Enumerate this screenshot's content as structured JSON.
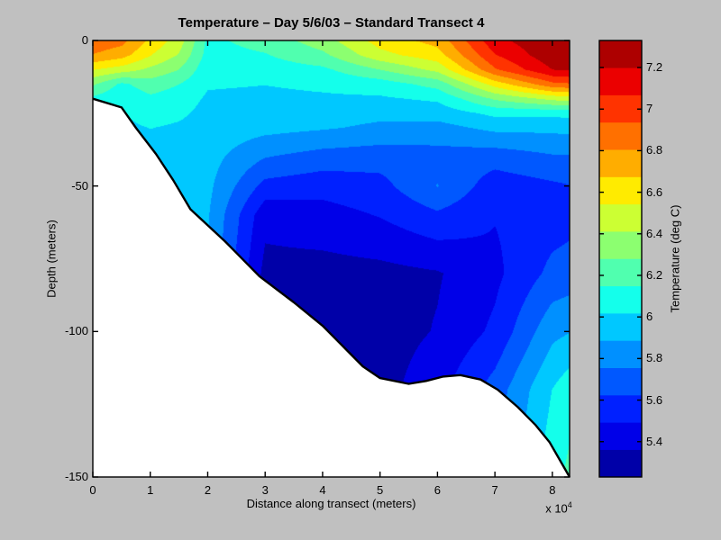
{
  "figure": {
    "title": "Temperature – Day 5/6/03 – Standard Transect 4",
    "background_color": "#C0C0C0"
  },
  "chart_data": {
    "type": "filled_contour",
    "title": "Temperature – Day 5/6/03 – Standard Transect 4",
    "xlabel": "Distance along transect (meters)",
    "ylabel": "Depth (meters)",
    "x_axis": {
      "min": 0,
      "max": 8.3,
      "tick_values": [
        0,
        1,
        2,
        3,
        4,
        5,
        6,
        7,
        8
      ],
      "tick_labels": [
        "0",
        "1",
        "2",
        "3",
        "4",
        "5",
        "6",
        "7",
        "8"
      ],
      "exponent_prefix": "x 10",
      "exponent_power": "4",
      "units": "meters (x 10^4)"
    },
    "y_axis": {
      "min": -150,
      "max": 0,
      "tick_values": [
        0,
        -50,
        -100,
        -150
      ],
      "tick_labels": [
        "0",
        "-50",
        "-100",
        "-150"
      ]
    },
    "colorbar": {
      "label": "Temperature (deg C)",
      "vmin": 5.23,
      "vmax": 7.33,
      "n_bands": 16,
      "tick_values": [
        5.4,
        5.6,
        5.8,
        6.0,
        6.2,
        6.4,
        6.6,
        6.8,
        7.0,
        7.2
      ],
      "tick_labels": [
        "5.4",
        "5.6",
        "5.8",
        "6",
        "6.2",
        "6.4",
        "6.6",
        "6.8",
        "7",
        "7.2"
      ],
      "band_colors_cold_to_warm": [
        "#0000A8",
        "#0000E8",
        "#0020FF",
        "#0058FF",
        "#0090FF",
        "#00C8FF",
        "#14FFEB",
        "#50FFAF",
        "#8CFF70",
        "#CCFF33",
        "#FFEB00",
        "#FFAD00",
        "#FF7000",
        "#FF3300",
        "#EB0000",
        "#AD0000"
      ]
    },
    "field": {
      "comment": "Temperature (deg C) grid: columns = distance (x10^4 m), rows = depth (m). Values estimated from contour colors.",
      "distances_1e4m": [
        0,
        0.5,
        1.0,
        1.5,
        2.0,
        3.0,
        4.0,
        5.0,
        6.0,
        7.0,
        8.0,
        8.3
      ],
      "depths_m": [
        0,
        5,
        10,
        15,
        20,
        25,
        30,
        40,
        50,
        60,
        80,
        100,
        120,
        150
      ],
      "temperature_degC": [
        [
          6.9,
          6.8,
          6.55,
          6.3,
          6.12,
          6.08,
          6.05,
          6.02,
          6.0,
          6.0,
          6.0,
          6.0,
          6.0,
          6.0
        ],
        [
          6.85,
          6.73,
          6.48,
          6.12,
          6.04,
          6.01,
          5.99,
          5.97,
          5.96,
          5.95,
          5.95,
          5.95,
          5.95,
          5.95
        ],
        [
          6.65,
          6.55,
          6.38,
          6.22,
          6.12,
          6.07,
          6.02,
          5.97,
          5.94,
          5.92,
          5.9,
          5.9,
          5.9,
          5.9
        ],
        [
          6.48,
          6.4,
          6.28,
          6.15,
          6.08,
          6.04,
          6.0,
          5.96,
          5.93,
          5.92,
          5.9,
          5.9,
          5.9,
          5.9
        ],
        [
          6.12,
          6.1,
          6.06,
          6.03,
          6.0,
          5.98,
          5.97,
          5.94,
          5.92,
          5.9,
          5.88,
          5.88,
          5.88,
          5.88
        ],
        [
          6.2,
          6.14,
          6.08,
          6.02,
          5.99,
          5.96,
          5.93,
          5.76,
          5.58,
          5.4,
          5.32,
          5.3,
          5.3,
          5.3
        ],
        [
          6.35,
          6.25,
          6.12,
          6.04,
          6.0,
          5.95,
          5.9,
          5.7,
          5.54,
          5.44,
          5.31,
          5.3,
          5.3,
          5.3
        ],
        [
          6.6,
          6.5,
          6.28,
          6.08,
          6.0,
          5.92,
          5.86,
          5.68,
          5.58,
          5.5,
          5.32,
          5.3,
          5.31,
          5.33
        ],
        [
          6.72,
          6.62,
          6.45,
          6.2,
          6.04,
          5.94,
          5.84,
          5.7,
          5.76,
          5.6,
          5.35,
          5.37,
          5.45,
          5.5
        ],
        [
          7.16,
          7.06,
          6.92,
          6.6,
          6.3,
          6.05,
          5.92,
          5.68,
          5.55,
          5.5,
          5.46,
          5.52,
          5.68,
          5.75
        ],
        [
          7.31,
          7.29,
          7.2,
          6.9,
          6.45,
          6.05,
          5.92,
          5.74,
          5.6,
          5.56,
          5.66,
          5.85,
          6.02,
          6.1
        ],
        [
          7.32,
          7.3,
          7.22,
          6.92,
          6.48,
          6.06,
          5.93,
          5.74,
          5.62,
          5.58,
          5.68,
          5.88,
          6.1,
          6.18
        ]
      ]
    },
    "bathymetry": {
      "comment": "Seafloor profile: white masked region below this line.",
      "distance_1e4m": [
        0,
        0.5,
        0.75,
        1.1,
        1.4,
        1.7,
        2.3,
        2.9,
        3.5,
        4.0,
        4.3,
        4.7,
        5.0,
        5.5,
        5.8,
        6.1,
        6.4,
        6.75,
        7.05,
        7.4,
        7.7,
        7.95,
        8.3
      ],
      "depth_m": [
        20,
        23,
        30,
        39,
        48,
        58,
        69,
        81,
        90,
        98,
        104,
        112,
        116,
        118,
        117,
        115.5,
        115,
        116.5,
        120,
        126,
        132,
        138,
        150
      ]
    },
    "legend_position": "right-colorbar",
    "grid": "off"
  }
}
